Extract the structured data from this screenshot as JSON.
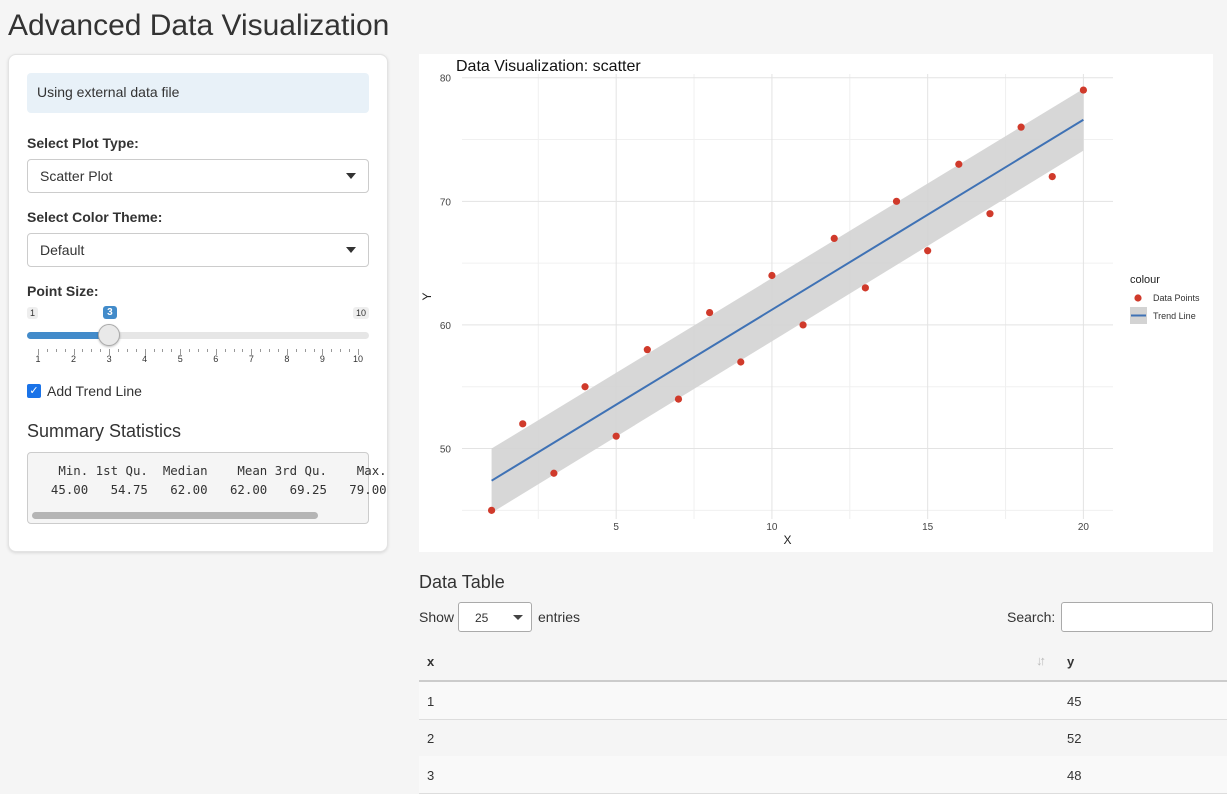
{
  "page_title": "Advanced Data Visualization",
  "sidebar": {
    "notice": "Using external data file",
    "plot_type": {
      "label": "Select Plot Type:",
      "value": "Scatter Plot"
    },
    "color_theme": {
      "label": "Select Color Theme:",
      "value": "Default"
    },
    "point_size": {
      "label": "Point Size:",
      "min": "1",
      "max": "10",
      "value": "3",
      "ticks": [
        "1",
        "2",
        "3",
        "4",
        "5",
        "6",
        "7",
        "8",
        "9",
        "10"
      ]
    },
    "trend_line": {
      "label": "Add Trend Line",
      "checked": true
    },
    "summary": {
      "heading": "Summary Statistics",
      "line1": "   Min. 1st Qu.  Median    Mean 3rd Qu.    Max.",
      "line2": "  45.00   54.75   62.00   62.00   69.25   79.00"
    }
  },
  "chart_data": {
    "type": "scatter",
    "title": "Data Visualization: scatter",
    "xlabel": "X",
    "ylabel": "Y",
    "xlim": [
      0.05,
      20.95
    ],
    "ylim": [
      44.3,
      80.3
    ],
    "x_ticks": [
      "5",
      "10",
      "15",
      "20"
    ],
    "y_ticks": [
      "50",
      "60",
      "70",
      "80"
    ],
    "legend_title": "colour",
    "legend_position": "right",
    "series": [
      {
        "name": "Data Points",
        "color": "#d03a2b",
        "x": [
          1,
          2,
          3,
          4,
          5,
          6,
          7,
          8,
          9,
          10,
          11,
          12,
          13,
          14,
          15,
          16,
          17,
          18,
          19,
          20
        ],
        "y": [
          45,
          52,
          48,
          55,
          51,
          58,
          54,
          61,
          57,
          64,
          60,
          67,
          63,
          70,
          66,
          73,
          69,
          76,
          72,
          79
        ]
      },
      {
        "name": "Trend Line",
        "color": "#3f72b5",
        "x": [
          1,
          20
        ],
        "y": [
          47.4,
          76.6
        ],
        "ribbon_lower": [
          44.8,
          74.1
        ],
        "ribbon_upper": [
          50.0,
          79.1
        ]
      }
    ],
    "grid": true
  },
  "table": {
    "heading": "Data Table",
    "show_label": "Show",
    "page_length": "25",
    "entries_label": "entries",
    "search_label": "Search:",
    "columns": [
      "x",
      "y"
    ],
    "rows": [
      [
        "1",
        "45"
      ],
      [
        "2",
        "52"
      ],
      [
        "3",
        "48"
      ]
    ]
  }
}
